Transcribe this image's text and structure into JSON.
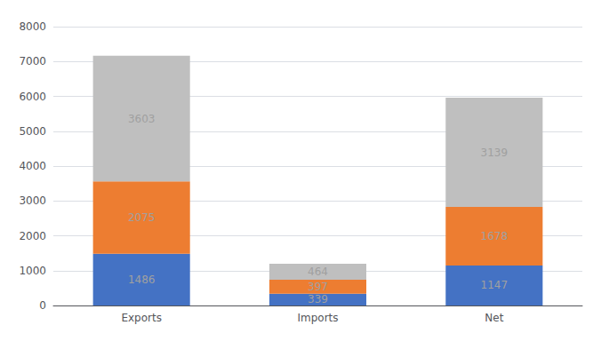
{
  "chart_data": {
    "type": "bar",
    "stacked": true,
    "categories": [
      "Exports",
      "Imports",
      "Net"
    ],
    "series": [
      {
        "color": "#4472C4",
        "values": [
          1486,
          339,
          1147
        ]
      },
      {
        "color": "#ED7D31",
        "values": [
          2075,
          397,
          1678
        ]
      },
      {
        "color": "#BFBFBF",
        "values": [
          3603,
          464,
          3139
        ]
      }
    ],
    "ylim": [
      0,
      8000
    ],
    "yticks": [
      0,
      1000,
      2000,
      3000,
      4000,
      5000,
      6000,
      7000,
      8000
    ],
    "grid": true,
    "data_labels": true
  }
}
